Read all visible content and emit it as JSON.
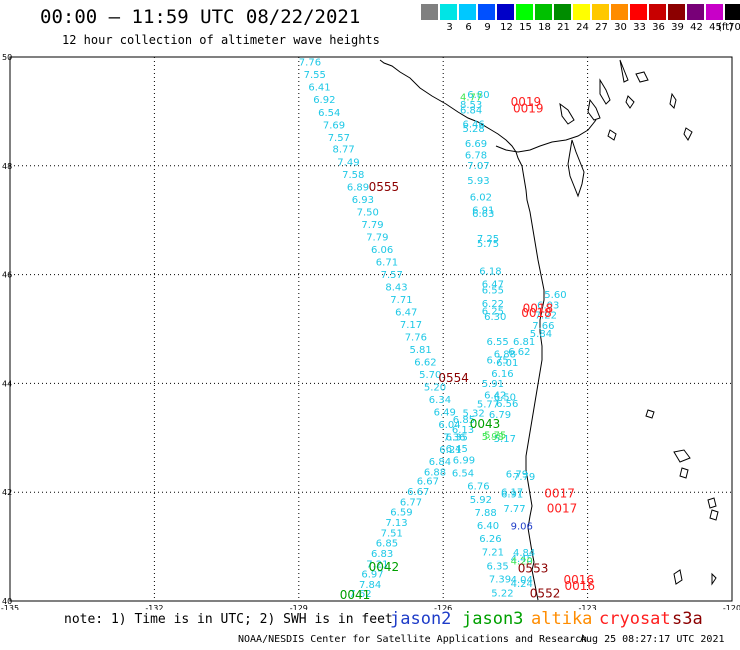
{
  "header": {
    "title": "00:00 — 11:59 UTC 08/22/2021",
    "subtitle": "12 hour collection of altimeter wave heights"
  },
  "colorbar": {
    "unit": "(ft)",
    "items": [
      {
        "label": "",
        "color": "#808080"
      },
      {
        "label": "3",
        "color": "#00e5e5"
      },
      {
        "label": "6",
        "color": "#00c8ff"
      },
      {
        "label": "9",
        "color": "#0050ff"
      },
      {
        "label": "12",
        "color": "#0000c8"
      },
      {
        "label": "15",
        "color": "#00ff00"
      },
      {
        "label": "18",
        "color": "#00c000"
      },
      {
        "label": "21",
        "color": "#008c00"
      },
      {
        "label": "24",
        "color": "#ffff00"
      },
      {
        "label": "27",
        "color": "#ffc800"
      },
      {
        "label": "30",
        "color": "#ff8c00"
      },
      {
        "label": "33",
        "color": "#ff0000"
      },
      {
        "label": "36",
        "color": "#c80000"
      },
      {
        "label": "39",
        "color": "#8c0000"
      },
      {
        "label": "42",
        "color": "#780078"
      },
      {
        "label": "45",
        "color": "#c800c8"
      },
      {
        "label": "70",
        "color": "#000000"
      }
    ]
  },
  "axes": {
    "lon_ticks": [
      "-135",
      "-132",
      "-129",
      "-126",
      "-123",
      "-120"
    ],
    "lat_ticks": [
      "50",
      "48",
      "46",
      "44",
      "42",
      "40"
    ]
  },
  "track_colors": {
    "cyan": "#1ec8e6",
    "lightgreen": "#3ce650",
    "blue": "#1e3cc8",
    "red": "#ff1e1e",
    "darkred": "#8c0000",
    "green": "#00a000"
  },
  "track_labels": [
    {
      "t": "7.76",
      "lon": -129.0,
      "lat": 49.84,
      "c": "cyan"
    },
    {
      "t": "7.55",
      "lon": -128.9,
      "lat": 49.61,
      "c": "cyan"
    },
    {
      "t": "6.41",
      "lon": -128.8,
      "lat": 49.38,
      "c": "cyan"
    },
    {
      "t": "6.92",
      "lon": -128.7,
      "lat": 49.15,
      "c": "cyan"
    },
    {
      "t": "6.54",
      "lon": -128.6,
      "lat": 48.92,
      "c": "cyan"
    },
    {
      "t": "7.69",
      "lon": -128.5,
      "lat": 48.69,
      "c": "cyan"
    },
    {
      "t": "7.57",
      "lon": -128.4,
      "lat": 48.46,
      "c": "cyan"
    },
    {
      "t": "8.77",
      "lon": -128.3,
      "lat": 48.24,
      "c": "cyan"
    },
    {
      "t": "7.49",
      "lon": -128.2,
      "lat": 48.01,
      "c": "cyan"
    },
    {
      "t": "7.58",
      "lon": -128.1,
      "lat": 47.78,
      "c": "cyan"
    },
    {
      "t": "6.89",
      "lon": -128.0,
      "lat": 47.55,
      "c": "cyan"
    },
    {
      "t": "6.93",
      "lon": -127.9,
      "lat": 47.32,
      "c": "cyan"
    },
    {
      "t": "7.50",
      "lon": -127.8,
      "lat": 47.09,
      "c": "cyan"
    },
    {
      "t": "7.79",
      "lon": -127.7,
      "lat": 46.86,
      "c": "cyan"
    },
    {
      "t": "7.79",
      "lon": -127.6,
      "lat": 46.63,
      "c": "cyan"
    },
    {
      "t": "6.06",
      "lon": -127.5,
      "lat": 46.4,
      "c": "cyan"
    },
    {
      "t": "6.71",
      "lon": -127.4,
      "lat": 46.17,
      "c": "cyan"
    },
    {
      "t": "7.57",
      "lon": -127.3,
      "lat": 45.94,
      "c": "cyan"
    },
    {
      "t": "8.43",
      "lon": -127.2,
      "lat": 45.71,
      "c": "cyan"
    },
    {
      "t": "7.71",
      "lon": -127.1,
      "lat": 45.48,
      "c": "cyan"
    },
    {
      "t": "6.47",
      "lon": -127.0,
      "lat": 45.25,
      "c": "cyan"
    },
    {
      "t": "7.17",
      "lon": -126.9,
      "lat": 45.02,
      "c": "cyan"
    },
    {
      "t": "7.76",
      "lon": -126.8,
      "lat": 44.79,
      "c": "cyan"
    },
    {
      "t": "5.81",
      "lon": -126.7,
      "lat": 44.56,
      "c": "cyan"
    },
    {
      "t": "6.62",
      "lon": -126.6,
      "lat": 44.33,
      "c": "cyan"
    },
    {
      "t": "5.70",
      "lon": -126.5,
      "lat": 44.1,
      "c": "cyan"
    },
    {
      "t": "5.20",
      "lon": -126.4,
      "lat": 43.87,
      "c": "cyan"
    },
    {
      "t": "6.34",
      "lon": -126.3,
      "lat": 43.64,
      "c": "cyan"
    },
    {
      "t": "6.49",
      "lon": -126.2,
      "lat": 43.41,
      "c": "cyan"
    },
    {
      "t": "6.04",
      "lon": -126.1,
      "lat": 43.18,
      "c": "cyan"
    },
    {
      "t": "7.36",
      "lon": -126.0,
      "lat": 42.95,
      "c": "cyan"
    },
    {
      "t": "6.21",
      "lon": -126.08,
      "lat": 42.72,
      "c": "cyan"
    },
    {
      "t": "6.84",
      "lon": -126.3,
      "lat": 42.5,
      "c": "cyan"
    },
    {
      "t": "6.88",
      "lon": -126.4,
      "lat": 42.31,
      "c": "cyan"
    },
    {
      "t": "6.67",
      "lon": -126.55,
      "lat": 42.14,
      "c": "cyan"
    },
    {
      "t": "6.67",
      "lon": -126.75,
      "lat": 41.95,
      "c": "cyan"
    },
    {
      "t": "6.77",
      "lon": -126.9,
      "lat": 41.76,
      "c": "cyan"
    },
    {
      "t": "6.59",
      "lon": -127.1,
      "lat": 41.57,
      "c": "cyan"
    },
    {
      "t": "7.13",
      "lon": -127.2,
      "lat": 41.38,
      "c": "cyan"
    },
    {
      "t": "7.51",
      "lon": -127.3,
      "lat": 41.19,
      "c": "cyan"
    },
    {
      "t": "6.85",
      "lon": -127.4,
      "lat": 41.0,
      "c": "cyan"
    },
    {
      "t": "6.83",
      "lon": -127.5,
      "lat": 40.81,
      "c": "cyan"
    },
    {
      "t": "7.21",
      "lon": -127.6,
      "lat": 40.62,
      "c": "cyan"
    },
    {
      "t": "6.97",
      "lon": -127.7,
      "lat": 40.43,
      "c": "cyan"
    },
    {
      "t": "7.84",
      "lon": -127.75,
      "lat": 40.24,
      "c": "cyan"
    },
    {
      "t": "7.62",
      "lon": -127.95,
      "lat": 40.07,
      "c": "cyan"
    },
    {
      "t": "6.35",
      "lon": -125.95,
      "lat": 42.95,
      "c": "cyan"
    },
    {
      "t": "6.13",
      "lon": -125.82,
      "lat": 43.09,
      "c": "cyan"
    },
    {
      "t": "6.85",
      "lon": -125.8,
      "lat": 43.27,
      "c": "cyan"
    },
    {
      "t": "6.45",
      "lon": -125.95,
      "lat": 42.74,
      "c": "cyan"
    },
    {
      "t": "6.99",
      "lon": -125.8,
      "lat": 42.53,
      "c": "cyan"
    },
    {
      "t": "6.54",
      "lon": -125.82,
      "lat": 42.29,
      "c": "cyan"
    },
    {
      "t": "6.76",
      "lon": -125.5,
      "lat": 42.05,
      "c": "cyan"
    },
    {
      "t": "5.92",
      "lon": -125.45,
      "lat": 41.8,
      "c": "cyan"
    },
    {
      "t": "7.88",
      "lon": -125.35,
      "lat": 41.56,
      "c": "cyan"
    },
    {
      "t": "6.40",
      "lon": -125.3,
      "lat": 41.32,
      "c": "cyan"
    },
    {
      "t": "6.26",
      "lon": -125.25,
      "lat": 41.08,
      "c": "cyan"
    },
    {
      "t": "7.21",
      "lon": -125.2,
      "lat": 40.84,
      "c": "cyan"
    },
    {
      "t": "6.35",
      "lon": -125.1,
      "lat": 40.58,
      "c": "cyan"
    },
    {
      "t": "7.39",
      "lon": -125.05,
      "lat": 40.34,
      "c": "cyan"
    },
    {
      "t": "5.22",
      "lon": -125.0,
      "lat": 40.08,
      "c": "cyan"
    },
    {
      "t": "6.80",
      "lon": -125.5,
      "lat": 49.25,
      "c": "cyan"
    },
    {
      "t": "8.53",
      "lon": -125.65,
      "lat": 49.06,
      "c": "cyan"
    },
    {
      "t": "6.84",
      "lon": -125.65,
      "lat": 48.96,
      "c": "cyan"
    },
    {
      "t": "6.46",
      "lon": -125.6,
      "lat": 48.7,
      "c": "cyan"
    },
    {
      "t": "5.28",
      "lon": -125.6,
      "lat": 48.62,
      "c": "cyan"
    },
    {
      "t": "6.69",
      "lon": -125.55,
      "lat": 48.35,
      "c": "cyan"
    },
    {
      "t": "6.78",
      "lon": -125.55,
      "lat": 48.13,
      "c": "cyan"
    },
    {
      "t": "7.07",
      "lon": -125.5,
      "lat": 47.94,
      "c": "cyan"
    },
    {
      "t": "5.93",
      "lon": -125.5,
      "lat": 47.67,
      "c": "cyan"
    },
    {
      "t": "6.02",
      "lon": -125.45,
      "lat": 47.36,
      "c": "cyan"
    },
    {
      "t": "6.91",
      "lon": -125.4,
      "lat": 47.12,
      "c": "cyan"
    },
    {
      "t": "6.63",
      "lon": -125.4,
      "lat": 47.06,
      "c": "cyan"
    },
    {
      "t": "7.25",
      "lon": -125.3,
      "lat": 46.6,
      "c": "cyan"
    },
    {
      "t": "5.75",
      "lon": -125.3,
      "lat": 46.51,
      "c": "cyan"
    },
    {
      "t": "6.18",
      "lon": -125.25,
      "lat": 46.0,
      "c": "cyan"
    },
    {
      "t": "6.47",
      "lon": -125.2,
      "lat": 45.76,
      "c": "cyan"
    },
    {
      "t": "6.55",
      "lon": -125.2,
      "lat": 45.65,
      "c": "cyan"
    },
    {
      "t": "6.22",
      "lon": -125.2,
      "lat": 45.4,
      "c": "cyan"
    },
    {
      "t": "6.25",
      "lon": -125.2,
      "lat": 45.27,
      "c": "cyan"
    },
    {
      "t": "6.30",
      "lon": -125.15,
      "lat": 45.17,
      "c": "cyan"
    },
    {
      "t": "6.55",
      "lon": -125.1,
      "lat": 44.71,
      "c": "cyan"
    },
    {
      "t": "6.81",
      "lon": -124.55,
      "lat": 44.71,
      "c": "cyan"
    },
    {
      "t": "6.88",
      "lon": -124.95,
      "lat": 44.48,
      "c": "cyan"
    },
    {
      "t": "6.62",
      "lon": -124.65,
      "lat": 44.52,
      "c": "cyan"
    },
    {
      "t": "6.01",
      "lon": -124.9,
      "lat": 44.32,
      "c": "cyan"
    },
    {
      "t": "6.75",
      "lon": -125.1,
      "lat": 44.37,
      "c": "cyan"
    },
    {
      "t": "6.16",
      "lon": -125.0,
      "lat": 44.12,
      "c": "cyan"
    },
    {
      "t": "5.91",
      "lon": -125.2,
      "lat": 43.93,
      "c": "cyan"
    },
    {
      "t": "6.42",
      "lon": -125.15,
      "lat": 43.72,
      "c": "cyan"
    },
    {
      "t": "6.50",
      "lon": -124.95,
      "lat": 43.69,
      "c": "cyan"
    },
    {
      "t": "5.77",
      "lon": -125.3,
      "lat": 43.56,
      "c": "cyan"
    },
    {
      "t": "6.56",
      "lon": -124.9,
      "lat": 43.57,
      "c": "cyan"
    },
    {
      "t": "5.32",
      "lon": -125.6,
      "lat": 43.39,
      "c": "cyan"
    },
    {
      "t": "6.79",
      "lon": -125.05,
      "lat": 43.36,
      "c": "cyan"
    },
    {
      "t": "5.17",
      "lon": -124.95,
      "lat": 42.92,
      "c": "cyan"
    },
    {
      "t": "6.79",
      "lon": -124.7,
      "lat": 42.27,
      "c": "cyan"
    },
    {
      "t": "7.79",
      "lon": -124.55,
      "lat": 42.22,
      "c": "cyan"
    },
    {
      "t": "6.17",
      "lon": -124.8,
      "lat": 41.94,
      "c": "cyan"
    },
    {
      "t": "6.91",
      "lon": -124.8,
      "lat": 41.9,
      "c": "cyan"
    },
    {
      "t": "7.77",
      "lon": -124.75,
      "lat": 41.64,
      "c": "cyan"
    },
    {
      "t": "4.84",
      "lon": -124.55,
      "lat": 40.83,
      "c": "cyan"
    },
    {
      "t": "4.45",
      "lon": -124.6,
      "lat": 40.72,
      "c": "cyan"
    },
    {
      "t": "4.04",
      "lon": -124.6,
      "lat": 40.33,
      "c": "cyan"
    },
    {
      "t": "4.24",
      "lon": -124.6,
      "lat": 40.26,
      "c": "cyan"
    },
    {
      "t": "5.60",
      "lon": -123.9,
      "lat": 45.57,
      "c": "cyan"
    },
    {
      "t": "6.03",
      "lon": -124.05,
      "lat": 45.38,
      "c": "cyan"
    },
    {
      "t": "7.22",
      "lon": -124.1,
      "lat": 45.19,
      "c": "cyan"
    },
    {
      "t": "7.66",
      "lon": -124.15,
      "lat": 45.0,
      "c": "cyan"
    },
    {
      "t": "5.84",
      "lon": -124.2,
      "lat": 44.85,
      "c": "cyan"
    },
    {
      "t": "5.98",
      "lon": -125.2,
      "lat": 42.96,
      "c": "lightgreen"
    },
    {
      "t": "5.75",
      "lon": -125.15,
      "lat": 42.99,
      "c": "lightgreen"
    },
    {
      "t": "4.20",
      "lon": -124.6,
      "lat": 40.67,
      "c": "lightgreen"
    },
    {
      "t": "4.77",
      "lon": -125.65,
      "lat": 49.2,
      "c": "lightgreen"
    },
    {
      "t": "9.06",
      "lon": -124.6,
      "lat": 41.31,
      "c": "blue"
    },
    {
      "t": "0019",
      "lon": -124.6,
      "lat": 49.1,
      "c": "red"
    },
    {
      "t": "0019",
      "lon": -124.55,
      "lat": 48.98,
      "c": "red"
    },
    {
      "t": "0018",
      "lon": -124.35,
      "lat": 45.3,
      "c": "red"
    },
    {
      "t": "0018",
      "lon": -124.38,
      "lat": 45.22,
      "c": "red"
    },
    {
      "t": "0017",
      "lon": -123.9,
      "lat": 41.9,
      "c": "red"
    },
    {
      "t": "0017",
      "lon": -123.85,
      "lat": 41.63,
      "c": "red"
    },
    {
      "t": "0016",
      "lon": -123.5,
      "lat": 40.31,
      "c": "red"
    },
    {
      "t": "0016",
      "lon": -123.48,
      "lat": 40.2,
      "c": "red"
    },
    {
      "t": "0555",
      "lon": -127.55,
      "lat": 47.54,
      "c": "darkred"
    },
    {
      "t": "0554",
      "lon": -126.1,
      "lat": 44.03,
      "c": "darkred"
    },
    {
      "t": "0553",
      "lon": -124.45,
      "lat": 40.52,
      "c": "darkred"
    },
    {
      "t": "0552",
      "lon": -124.2,
      "lat": 40.06,
      "c": "darkred"
    },
    {
      "t": "0043",
      "lon": -125.45,
      "lat": 43.18,
      "c": "green"
    },
    {
      "t": "0042",
      "lon": -127.55,
      "lat": 40.55,
      "c": "green"
    },
    {
      "t": "0041",
      "lon": -128.15,
      "lat": 40.04,
      "c": "green"
    }
  ],
  "footer": {
    "note": "note: 1) Time is in UTC; 2) SWH is in feet",
    "legend": [
      {
        "label": "jason2",
        "color": "#1e3cc8"
      },
      {
        "label": "jason3",
        "color": "#00a000"
      },
      {
        "label": "altika",
        "color": "#ff8c00"
      },
      {
        "label": "cryosat",
        "color": "#ff1e1e"
      },
      {
        "label": "s3a",
        "color": "#8c0000"
      }
    ],
    "credit": "NOAA/NESDIS Center for Satellite Applications and Research",
    "timestamp": "Aug 25 08:27:17 UTC 2021"
  }
}
